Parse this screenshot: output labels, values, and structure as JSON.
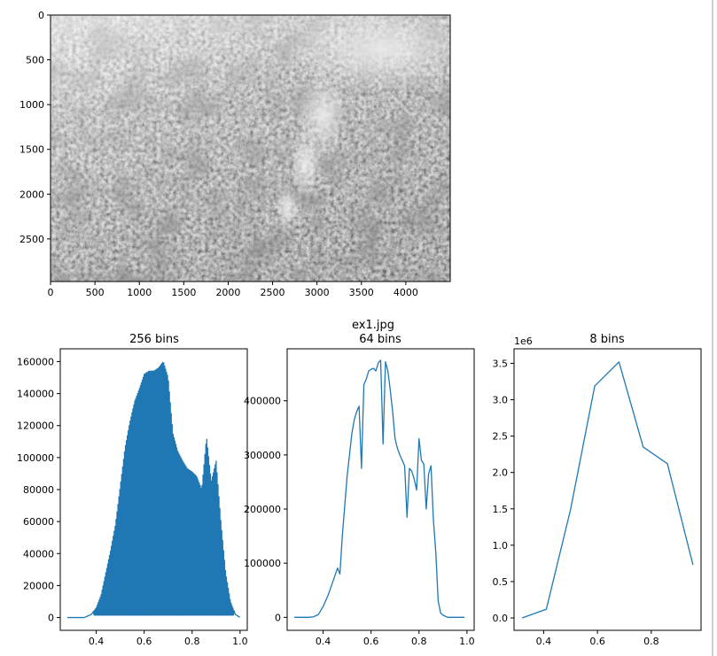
{
  "figure": {
    "suptitle": "ex1.jpg",
    "colors": {
      "series": "#1f77b4",
      "frame": "#000000",
      "image_light": "#e6e6e6",
      "image_dark": "#6a6a6a"
    }
  },
  "chart_data": [
    {
      "type": "image",
      "content": "grayscale aerial photo of forest canopy with smoke plume",
      "xlim": [
        0,
        4500
      ],
      "ylim": [
        2976,
        0
      ],
      "xticks": [
        0,
        500,
        1000,
        1500,
        2000,
        2500,
        3000,
        3500,
        4000
      ],
      "yticks": [
        0,
        500,
        1000,
        1500,
        2000,
        2500
      ],
      "xtick_labels": [
        "0",
        "500",
        "1000",
        "1500",
        "2000",
        "2500",
        "3000",
        "3500",
        "4000"
      ],
      "ytick_labels": [
        "0",
        "500",
        "1000",
        "1500",
        "2000",
        "2500"
      ]
    },
    {
      "type": "line",
      "title": "256 bins",
      "xlim": [
        0.25,
        1.03
      ],
      "ylim": [
        -8000,
        168000
      ],
      "xticks": [
        0.4,
        0.6,
        0.8,
        1.0
      ],
      "xtick_labels": [
        "0.4",
        "0.6",
        "0.8",
        "1.0"
      ],
      "yticks": [
        0,
        20000,
        40000,
        60000,
        80000,
        100000,
        120000,
        140000,
        160000
      ],
      "ytick_labels": [
        "0",
        "20000",
        "40000",
        "60000",
        "80000",
        "100000",
        "120000",
        "140000",
        "160000"
      ],
      "envelope": {
        "x": [
          0.28,
          0.35,
          0.38,
          0.4,
          0.42,
          0.44,
          0.46,
          0.48,
          0.5,
          0.52,
          0.54,
          0.56,
          0.58,
          0.6,
          0.62,
          0.64,
          0.66,
          0.68,
          0.7,
          0.72,
          0.74,
          0.76,
          0.78,
          0.8,
          0.82,
          0.84,
          0.86,
          0.88,
          0.9,
          0.92,
          0.94,
          0.96,
          0.98,
          1.0
        ],
        "y": [
          0,
          0,
          2000,
          6000,
          14000,
          28000,
          42000,
          58000,
          82000,
          106000,
          122000,
          135000,
          143000,
          152000,
          154000,
          154000,
          156000,
          160000,
          150000,
          115000,
          104000,
          98000,
          93000,
          91000,
          88000,
          80000,
          113000,
          85000,
          98000,
          60000,
          28000,
          10000,
          2000,
          0
        ]
      },
      "spike_spacing": 0.0039
    },
    {
      "type": "line",
      "title": "64 bins",
      "xlim": [
        0.25,
        1.03
      ],
      "ylim": [
        -24000,
        496000
      ],
      "xticks": [
        0.4,
        0.6,
        0.8,
        1.0
      ],
      "xtick_labels": [
        "0.4",
        "0.6",
        "0.8",
        "1.0"
      ],
      "yticks": [
        0,
        100000,
        200000,
        300000,
        400000
      ],
      "ytick_labels": [
        "0",
        "100000",
        "200000",
        "300000",
        "400000"
      ],
      "x": [
        0.28,
        0.3,
        0.32,
        0.34,
        0.36,
        0.38,
        0.4,
        0.42,
        0.44,
        0.46,
        0.47,
        0.48,
        0.49,
        0.5,
        0.52,
        0.53,
        0.54,
        0.55,
        0.56,
        0.57,
        0.58,
        0.59,
        0.6,
        0.61,
        0.62,
        0.63,
        0.64,
        0.65,
        0.66,
        0.67,
        0.68,
        0.69,
        0.7,
        0.71,
        0.72,
        0.73,
        0.74,
        0.75,
        0.76,
        0.77,
        0.78,
        0.79,
        0.8,
        0.81,
        0.82,
        0.83,
        0.84,
        0.85,
        0.86,
        0.87,
        0.88,
        0.89,
        0.9,
        0.91,
        0.92,
        0.94,
        0.96,
        0.98,
        0.99
      ],
      "y": [
        0,
        0,
        0,
        0,
        1000,
        5000,
        20000,
        40000,
        65000,
        91000,
        80000,
        150000,
        205000,
        260000,
        340000,
        365000,
        380000,
        390000,
        275000,
        430000,
        440000,
        455000,
        458000,
        460000,
        455000,
        470000,
        475000,
        320000,
        472000,
        455000,
        420000,
        380000,
        330000,
        312000,
        300000,
        290000,
        280000,
        185000,
        275000,
        270000,
        255000,
        235000,
        330000,
        290000,
        283000,
        200000,
        265000,
        280000,
        180000,
        120000,
        30000,
        8000,
        4000,
        2000,
        0,
        0,
        0,
        0,
        0
      ]
    },
    {
      "type": "line",
      "title": "8 bins",
      "xlim": [
        0.29,
        0.985
      ],
      "ylim": [
        -0.17,
        3.7
      ],
      "y_multiplier": "1e6",
      "xticks": [
        0.4,
        0.6,
        0.8
      ],
      "xtick_labels": [
        "0.4",
        "0.6",
        "0.8"
      ],
      "yticks": [
        0.0,
        0.5,
        1.0,
        1.5,
        2.0,
        2.5,
        3.0,
        3.5
      ],
      "ytick_labels": [
        "0.0",
        "0.5",
        "1.0",
        "1.5",
        "2.0",
        "2.5",
        "3.0",
        "3.5"
      ],
      "x": [
        0.32,
        0.41,
        0.5,
        0.59,
        0.68,
        0.77,
        0.86,
        0.955
      ],
      "y": [
        0.0,
        0.12,
        1.49,
        3.19,
        3.52,
        2.35,
        2.12,
        0.73
      ]
    }
  ]
}
